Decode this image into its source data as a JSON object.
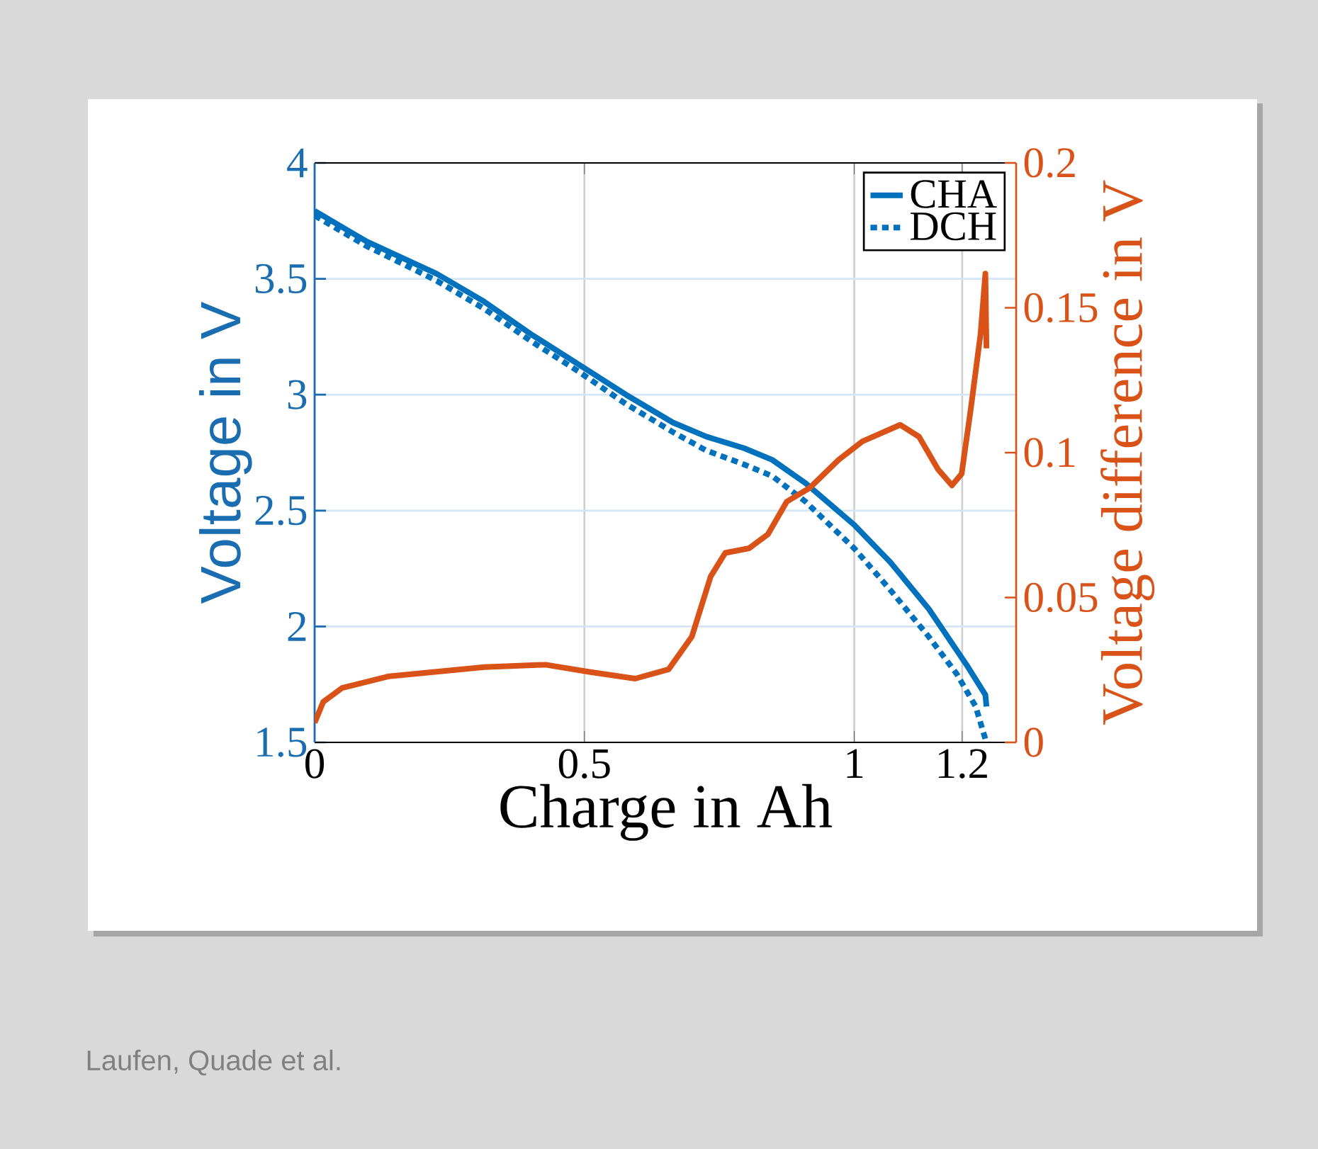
{
  "chart_data": {
    "type": "line",
    "xlabel": "Charge in Ah",
    "ylabel": "Voltage  in V",
    "y2label": "Voltage difference in V",
    "xlim": [
      0,
      1.3
    ],
    "ylim": [
      1.5,
      4
    ],
    "y2lim": [
      0,
      0.2
    ],
    "xticks": [
      0,
      0.5,
      1,
      1.2
    ],
    "yticks": [
      1.5,
      2,
      2.5,
      3,
      3.5,
      4
    ],
    "y2ticks": [
      0,
      0.05,
      0.1,
      0.15,
      0.2
    ],
    "grid": true,
    "legend": "top right",
    "series": [
      {
        "name": "CHA",
        "color": "#0072bd",
        "line_style": "solid",
        "x": [
          0,
          0.095,
          0.226,
          0.314,
          0.401,
          0.489,
          0.577,
          0.664,
          0.726,
          0.796,
          0.848,
          0.91,
          1.0,
          1.067,
          1.138,
          1.208,
          1.243,
          1.245
        ],
        "values": [
          3.793,
          3.663,
          3.522,
          3.402,
          3.261,
          3.131,
          3.0,
          2.88,
          2.819,
          2.769,
          2.719,
          2.618,
          2.438,
          2.277,
          2.076,
          1.835,
          1.705,
          1.655
        ]
      },
      {
        "name": "DCH",
        "color": "#0072bd",
        "line_style": "dotted",
        "x": [
          0,
          0.095,
          0.226,
          0.314,
          0.401,
          0.489,
          0.577,
          0.664,
          0.726,
          0.796,
          0.848,
          0.91,
          1.0,
          1.067,
          1.138,
          1.19,
          1.225,
          1.243
        ],
        "values": [
          3.773,
          3.643,
          3.492,
          3.371,
          3.231,
          3.1,
          2.96,
          2.839,
          2.759,
          2.699,
          2.649,
          2.538,
          2.337,
          2.157,
          1.956,
          1.795,
          1.655,
          1.514
        ]
      },
      {
        "color": "#d95319",
        "line_style": "solid",
        "axis": "y2",
        "x": [
          0,
          0.016,
          0.051,
          0.138,
          0.226,
          0.314,
          0.428,
          0.507,
          0.594,
          0.656,
          0.699,
          0.734,
          0.761,
          0.805,
          0.84,
          0.875,
          0.918,
          0.971,
          1.015,
          1.085,
          1.12,
          1.155,
          1.181,
          1.199,
          1.216,
          1.234,
          1.243,
          1.245
        ],
        "values": [
          0.0068,
          0.014,
          0.0188,
          0.0228,
          0.0244,
          0.026,
          0.0268,
          0.0244,
          0.022,
          0.0252,
          0.0365,
          0.0573,
          0.0654,
          0.067,
          0.0718,
          0.0831,
          0.0879,
          0.0975,
          0.1039,
          0.1096,
          0.1055,
          0.0943,
          0.0887,
          0.0927,
          0.1152,
          0.1409,
          0.1618,
          0.136
        ]
      }
    ],
    "annotations": [
      "Laufen, Quade et al."
    ]
  }
}
